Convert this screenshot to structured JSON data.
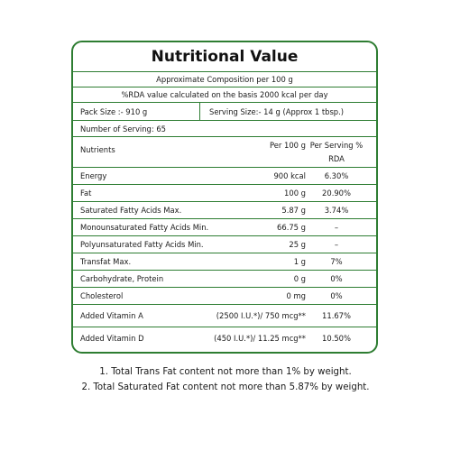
{
  "title": "Nutritional Value",
  "composition": "Approximate Composition per 100 g",
  "rda_note": "%RDA value calculated on the basis 2000 kcal per day",
  "pack_size": "Pack Size :- 910 g",
  "serving_size": "Serving Size:- 14 g (Approx 1 tbsp.)",
  "servings": "Number of Serving: 65",
  "header": {
    "nutrients": "Nutrients",
    "per100": "Per 100 g",
    "per_serving": "Per Serving %",
    "rda": "RDA"
  },
  "rows": [
    {
      "name": "Energy",
      "value": "900 kcal",
      "pct": "6.30%"
    },
    {
      "name": "Fat",
      "value": "100 g",
      "pct": "20.90%"
    },
    {
      "name": "Saturated Fatty Acids Max.",
      "value": "5.87 g",
      "pct": "3.74%"
    },
    {
      "name": "Monounsaturated Fatty Acids Min.",
      "value": "66.75 g",
      "pct": "–"
    },
    {
      "name": "Polyunsaturated Fatty Acids Min.",
      "value": "25 g",
      "pct": "–"
    },
    {
      "name": "Transfat Max.",
      "value": "1 g",
      "pct": "7%"
    },
    {
      "name": "Carbohydrate, Protein",
      "value": "0 g",
      "pct": "0%"
    },
    {
      "name": "Cholesterol",
      "value": "0 mg",
      "pct": "0%"
    },
    {
      "name": "Added Vitamin A",
      "value": "(2500 I.U.*)/ 750 mcg**",
      "pct": "11.67%"
    },
    {
      "name": "Added Vitamin D",
      "value": "(450 I.U.*)/ 11.25 mcg**",
      "pct": "10.50%"
    }
  ],
  "notes": [
    "1. Total Trans Fat content not more than 1% by weight.",
    "2. Total Saturated Fat content not more than 5.87% by weight."
  ],
  "colors": {
    "border": "#2e7d32"
  }
}
